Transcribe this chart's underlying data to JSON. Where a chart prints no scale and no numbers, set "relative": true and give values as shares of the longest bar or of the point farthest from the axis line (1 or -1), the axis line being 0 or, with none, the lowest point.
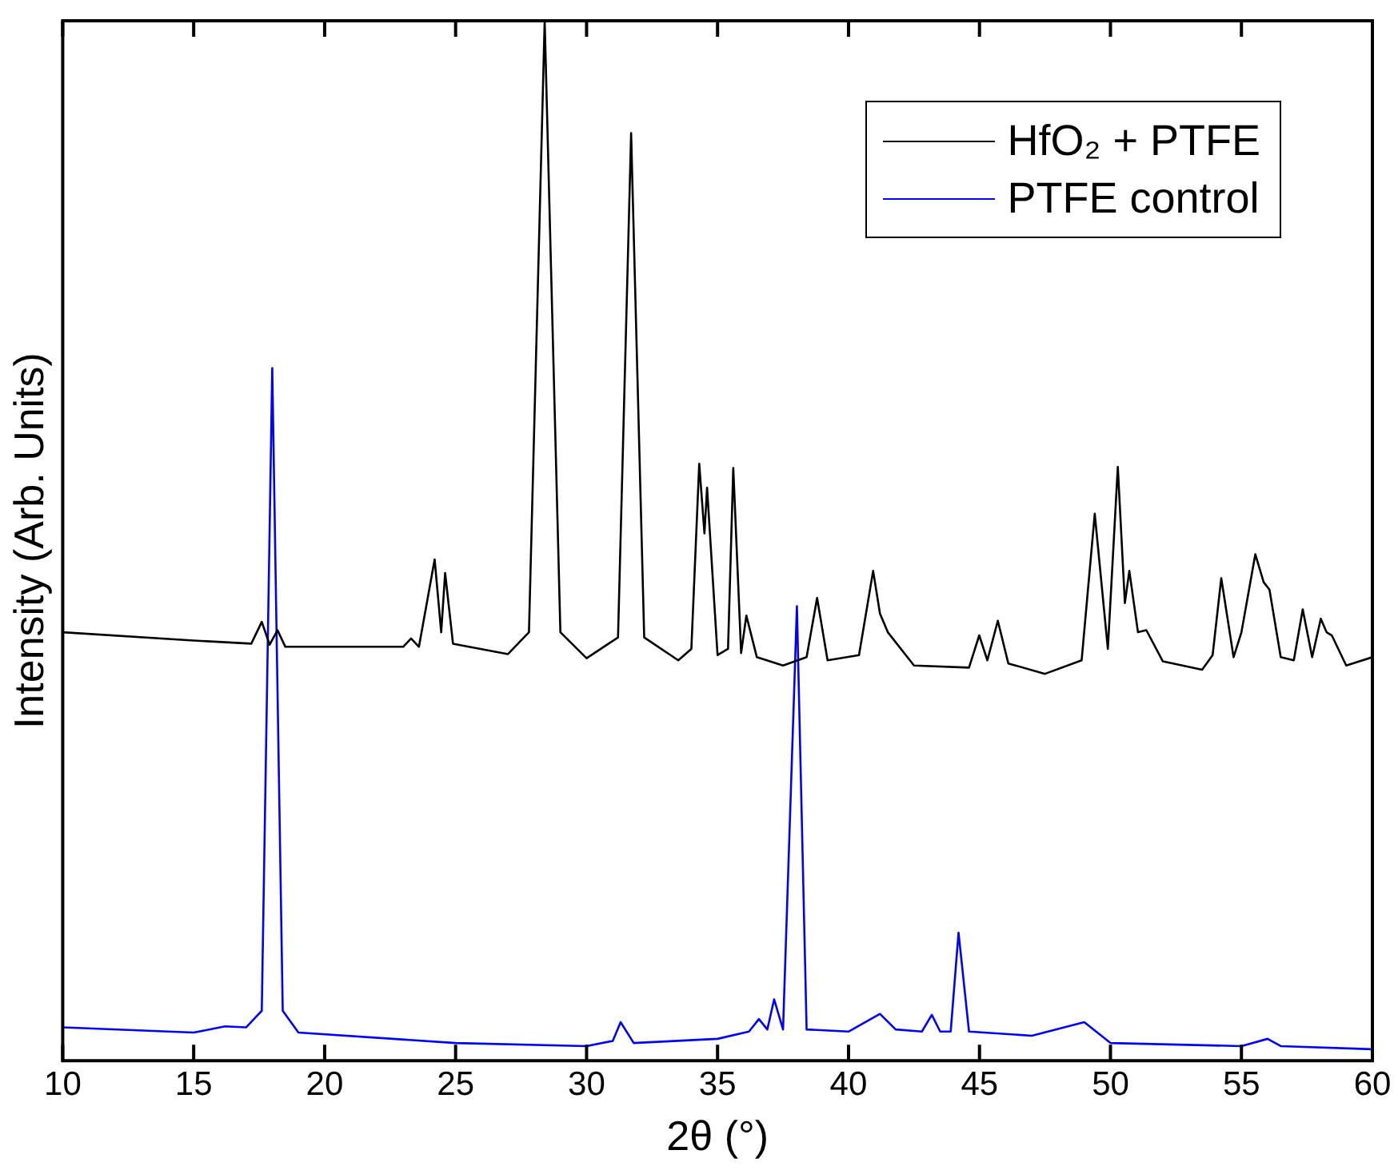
{
  "chart_data": {
    "type": "line",
    "relative": true,
    "xlabel": "2θ (°)",
    "ylabel": "Intensity (Arb. Units)",
    "xlim": [
      10,
      60
    ],
    "xticks": [
      10,
      15,
      20,
      25,
      30,
      35,
      40,
      45,
      50,
      55,
      60
    ],
    "grid": false,
    "legend": "top right",
    "marker": "none",
    "line_style": "solid",
    "series": [
      {
        "name": "HfO₂ + PTFE",
        "color": "#000000",
        "x": [
          10,
          15,
          17.2,
          17.6,
          17.9,
          18.2,
          18.5,
          23,
          23.3,
          23.6,
          24.2,
          24.45,
          24.6,
          24.9,
          25.3,
          27,
          27.8,
          28.4,
          29,
          30,
          31.2,
          31.7,
          32.2,
          33.5,
          34,
          34.3,
          34.5,
          34.6,
          35,
          35.4,
          35.6,
          35.9,
          36.1,
          36.5,
          37.5,
          38.4,
          38.8,
          39.2,
          40.4,
          40.94,
          41.2,
          41.5,
          42.5,
          44.6,
          44.99,
          45.3,
          45.7,
          46.1,
          47.5,
          48.9,
          49.4,
          49.9,
          50.28,
          50.55,
          50.72,
          51.05,
          51.37,
          52,
          53.5,
          53.9,
          54.23,
          54.7,
          55,
          55.53,
          55.85,
          56.07,
          56.5,
          57,
          57.34,
          57.7,
          58.03,
          58.25,
          58.45,
          59,
          60
        ],
        "values": [
          0.412,
          0.404,
          0.401,
          0.422,
          0.4,
          0.414,
          0.398,
          0.398,
          0.406,
          0.398,
          0.482,
          0.412,
          0.469,
          0.401,
          0.399,
          0.391,
          0.412,
          1.0,
          0.412,
          0.387,
          0.407,
          0.892,
          0.407,
          0.385,
          0.396,
          0.574,
          0.507,
          0.551,
          0.39,
          0.396,
          0.57,
          0.392,
          0.428,
          0.388,
          0.38,
          0.388,
          0.445,
          0.385,
          0.39,
          0.471,
          0.43,
          0.412,
          0.38,
          0.378,
          0.409,
          0.385,
          0.423,
          0.382,
          0.372,
          0.385,
          0.526,
          0.396,
          0.571,
          0.44,
          0.471,
          0.412,
          0.414,
          0.384,
          0.376,
          0.39,
          0.464,
          0.388,
          0.412,
          0.487,
          0.46,
          0.453,
          0.388,
          0.385,
          0.434,
          0.388,
          0.425,
          0.412,
          0.409,
          0.38,
          0.388
        ]
      },
      {
        "name": "PTFE control",
        "color": "#0000ff",
        "x": [
          10,
          15,
          16.2,
          17,
          17.6,
          18.0,
          18.4,
          19,
          25,
          30,
          31.0,
          31.3,
          31.8,
          35,
          36.2,
          36.58,
          36.9,
          37.16,
          37.5,
          38.03,
          38.4,
          40,
          41.2,
          41.8,
          42.8,
          43.18,
          43.5,
          43.9,
          44.2,
          44.6,
          47,
          49.0,
          50,
          55,
          56.0,
          56.5,
          60
        ],
        "values": [
          0.032,
          0.027,
          0.033,
          0.032,
          0.048,
          0.666,
          0.048,
          0.027,
          0.017,
          0.014,
          0.019,
          0.037,
          0.017,
          0.021,
          0.028,
          0.04,
          0.03,
          0.059,
          0.03,
          0.437,
          0.03,
          0.028,
          0.045,
          0.03,
          0.028,
          0.044,
          0.028,
          0.028,
          0.123,
          0.028,
          0.024,
          0.037,
          0.017,
          0.014,
          0.021,
          0.014,
          0.011
        ]
      }
    ]
  }
}
